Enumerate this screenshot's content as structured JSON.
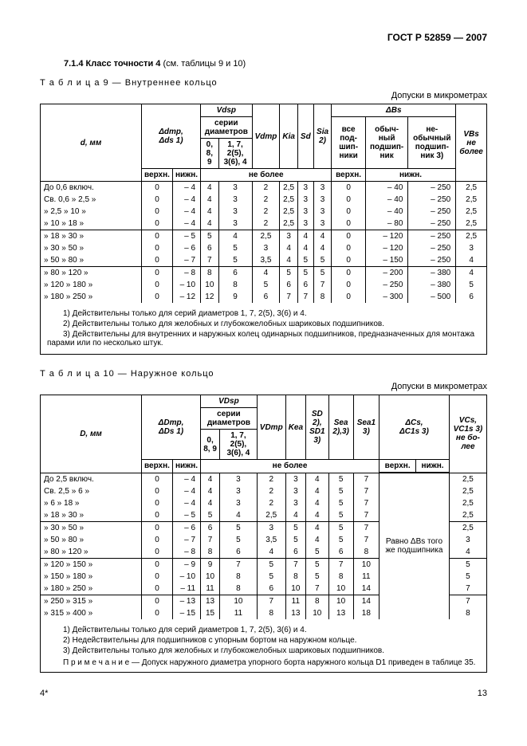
{
  "doc_code": "ГОСТ Р 52859 — 2007",
  "section_number": "7.1.4",
  "section_title": "Класс точности 4",
  "section_suffix": "(см. таблицы 9 и 10)",
  "page_number": "13",
  "page_marker": "4*",
  "table9": {
    "caption": "Т а б л и ц а   9 — Внутреннее кольцо",
    "sub": "Допуски в микрометрах",
    "h_d": "d, мм",
    "h_dmp": "Δdmp,",
    "h_ds": "Δds 1)",
    "h_vdsp": "Vdsp",
    "h_series": "серии диаметров",
    "h_s1": "0, 8, 9",
    "h_s2": "1, 7, 2(5), 3(6), 4",
    "h_vdmp": "Vdmp",
    "h_kia": "Kia",
    "h_sd": "Sd",
    "h_sia": "Sia 2)",
    "h_dbs": "ΔBs",
    "h_all": "все под-шип-ники",
    "h_normal": "обыч-ный подшип-ник",
    "h_unusual": "не-обычный подшип-ник 3)",
    "h_vbs": "VBs не более",
    "h_upper": "верхн.",
    "h_lower": "нижн.",
    "h_nomore": "не более",
    "rows": [
      {
        "d": "До   0,6 включ.",
        "u": "0",
        "l": "– 4",
        "c1": "4",
        "c2": "3",
        "vd": "2",
        "k": "2,5",
        "sd": "3",
        "si": "3",
        "bu": "0",
        "bl1": "– 40",
        "bl2": "– 250",
        "vb": "2,5"
      },
      {
        "d": "Св.  0,6 »   2,5   »",
        "u": "0",
        "l": "– 4",
        "c1": "4",
        "c2": "3",
        "vd": "2",
        "k": "2,5",
        "sd": "3",
        "si": "3",
        "bu": "0",
        "bl1": "– 40",
        "bl2": "– 250",
        "vb": "2,5"
      },
      {
        "d": "»     2,5 »   10    »",
        "u": "0",
        "l": "– 4",
        "c1": "4",
        "c2": "3",
        "vd": "2",
        "k": "2,5",
        "sd": "3",
        "si": "3",
        "bu": "0",
        "bl1": "– 40",
        "bl2": "– 250",
        "vb": "2,5"
      },
      {
        "d": "»     10  »   18    »",
        "u": "0",
        "l": "– 4",
        "c1": "4",
        "c2": "3",
        "vd": "2",
        "k": "2,5",
        "sd": "3",
        "si": "3",
        "bu": "0",
        "bl1": "– 80",
        "bl2": "– 250",
        "vb": "2,5"
      },
      {
        "d": "»     18  »   30    »",
        "u": "0",
        "l": "– 5",
        "c1": "5",
        "c2": "4",
        "vd": "2,5",
        "k": "3",
        "sd": "4",
        "si": "4",
        "bu": "0",
        "bl1": "– 120",
        "bl2": "– 250",
        "vb": "2,5",
        "sep": true
      },
      {
        "d": "»     30  »   50    »",
        "u": "0",
        "l": "– 6",
        "c1": "6",
        "c2": "5",
        "vd": "3",
        "k": "4",
        "sd": "4",
        "si": "4",
        "bu": "0",
        "bl1": "– 120",
        "bl2": "– 250",
        "vb": "3"
      },
      {
        "d": "»     50  »   80    »",
        "u": "0",
        "l": "– 7",
        "c1": "7",
        "c2": "5",
        "vd": "3,5",
        "k": "4",
        "sd": "5",
        "si": "5",
        "bu": "0",
        "bl1": "– 150",
        "bl2": "– 250",
        "vb": "4"
      },
      {
        "d": "»     80  »  120   »",
        "u": "0",
        "l": "– 8",
        "c1": "8",
        "c2": "6",
        "vd": "4",
        "k": "5",
        "sd": "5",
        "si": "5",
        "bu": "0",
        "bl1": "– 200",
        "bl2": "– 380",
        "vb": "4",
        "sep": true
      },
      {
        "d": "»    120 »  180   »",
        "u": "0",
        "l": "– 10",
        "c1": "10",
        "c2": "8",
        "vd": "5",
        "k": "6",
        "sd": "6",
        "si": "7",
        "bu": "0",
        "bl1": "– 250",
        "bl2": "– 380",
        "vb": "5"
      },
      {
        "d": "»    180 »  250   »",
        "u": "0",
        "l": "– 12",
        "c1": "12",
        "c2": "9",
        "vd": "6",
        "k": "7",
        "sd": "7",
        "si": "8",
        "bu": "0",
        "bl1": "– 300",
        "bl2": "– 500",
        "vb": "6"
      }
    ],
    "fn1": "1)  Действительны только для серий диаметров 1, 7, 2(5), 3(6) и 4.",
    "fn2": "2)  Действительны только для желобных и глубокожелобных шариковых подшипников.",
    "fn3": "3)  Действительны для внутренних и наружных колец одинарных подшипников, предназначенных для монтажа парами или по несколько штук."
  },
  "table10": {
    "caption": "Т а б л и ц а   10 — Наружное кольцо",
    "sub": "Допуски в микрометрах",
    "h_d": "D, мм",
    "h_dmp": "ΔDmp,",
    "h_ds": "ΔDs 1)",
    "h_vdsp": "VDsp",
    "h_series": "серии диаметров",
    "h_s1": "0, 8, 9",
    "h_s2": "1, 7, 2(5), 3(6), 4",
    "h_vdmp": "VDmp",
    "h_kea": "Kea",
    "h_sd": "SD 2),",
    "h_sd1": "SD1 3)",
    "h_sea": "Sea 2),3)",
    "h_sea1": "Sea1 3)",
    "h_dcs": "ΔCs,",
    "h_dc1s": "ΔC1s 3)",
    "h_vcs": "VCs, VC1s 3) не бо-лее",
    "h_upper": "верхн.",
    "h_lower": "нижн.",
    "h_nomore": "не более",
    "note_text": "Равно ΔBs того же подшипника",
    "rows": [
      {
        "d": "До   2,5 включ.",
        "u": "0",
        "l": "– 4",
        "c1": "4",
        "c2": "3",
        "vd": "2",
        "k": "3",
        "sd": "4",
        "se": "5",
        "s1": "7",
        "vc": "2,5"
      },
      {
        "d": "Св.   2,5 »   6     »",
        "u": "0",
        "l": "– 4",
        "c1": "4",
        "c2": "3",
        "vd": "2",
        "k": "3",
        "sd": "4",
        "se": "5",
        "s1": "7",
        "vc": "2,5"
      },
      {
        "d": "»       6   »   18   »",
        "u": "0",
        "l": "– 4",
        "c1": "4",
        "c2": "3",
        "vd": "2",
        "k": "3",
        "sd": "4",
        "se": "5",
        "s1": "7",
        "vc": "2,5"
      },
      {
        "d": "»      18  »   30   »",
        "u": "0",
        "l": "– 5",
        "c1": "5",
        "c2": "4",
        "vd": "2,5",
        "k": "4",
        "sd": "4",
        "se": "5",
        "s1": "7",
        "vc": "2,5"
      },
      {
        "d": "»      30  »   50   »",
        "u": "0",
        "l": "– 6",
        "c1": "6",
        "c2": "5",
        "vd": "3",
        "k": "5",
        "sd": "4",
        "se": "5",
        "s1": "7",
        "vc": "2,5",
        "sep": true
      },
      {
        "d": "»      50  »   80   »",
        "u": "0",
        "l": "– 7",
        "c1": "7",
        "c2": "5",
        "vd": "3,5",
        "k": "5",
        "sd": "4",
        "se": "5",
        "s1": "7",
        "vc": "3"
      },
      {
        "d": "»      80  »  120  »",
        "u": "0",
        "l": "– 8",
        "c1": "8",
        "c2": "6",
        "vd": "4",
        "k": "6",
        "sd": "5",
        "se": "6",
        "s1": "8",
        "vc": "4"
      },
      {
        "d": "»     120 »  150  »",
        "u": "0",
        "l": "– 9",
        "c1": "9",
        "c2": "7",
        "vd": "5",
        "k": "7",
        "sd": "5",
        "se": "7",
        "s1": "10",
        "vc": "5",
        "sep": true
      },
      {
        "d": "»     150 »  180  »",
        "u": "0",
        "l": "– 10",
        "c1": "10",
        "c2": "8",
        "vd": "5",
        "k": "8",
        "sd": "5",
        "se": "8",
        "s1": "11",
        "vc": "5"
      },
      {
        "d": "»     180 »  250  »",
        "u": "0",
        "l": "– 11",
        "c1": "11",
        "c2": "8",
        "vd": "6",
        "k": "10",
        "sd": "7",
        "se": "10",
        "s1": "14",
        "vc": "7"
      },
      {
        "d": "»     250 »  315  »",
        "u": "0",
        "l": "– 13",
        "c1": "13",
        "c2": "10",
        "vd": "7",
        "k": "11",
        "sd": "8",
        "se": "10",
        "s1": "14",
        "vc": "7",
        "sep": true
      },
      {
        "d": "»     315 »  400  »",
        "u": "0",
        "l": "– 15",
        "c1": "15",
        "c2": "11",
        "vd": "8",
        "k": "13",
        "sd": "10",
        "se": "13",
        "s1": "18",
        "vc": "8"
      }
    ],
    "fn1": "1)  Действительны только для серий диаметров 1, 7, 2(5), 3(6) и 4.",
    "fn2": "2)  Недействительны для подшипников с упорным бортом на наружном кольце.",
    "fn3": "3)  Действительны только для желобных и глубокожелобных шариковых подшипников.",
    "note": "П р и м е ч а н и е  — Допуск наружного диаметра упорного борта наружного кольца D1 приведен в таблице 35."
  }
}
